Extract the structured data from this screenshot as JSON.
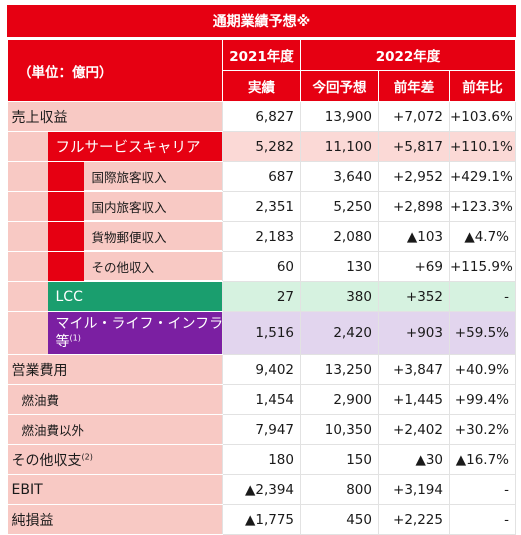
{
  "title": "通期業績予想※",
  "header": {
    "unit": "（単位：億円）",
    "fy2021": "2021年度",
    "fy2022": "2022年度",
    "actual": "実績",
    "forecast": "今回予想",
    "yoy_diff": "前年差",
    "yoy_ratio": "前年比"
  },
  "rows": [
    {
      "label": "売上収益",
      "v2021": "6,827",
      "v2022": "13,900",
      "diff": "+7,072",
      "ratio": "+103.6%"
    },
    {
      "label": "フルサービスキャリア",
      "v2021": "5,282",
      "v2022": "11,100",
      "diff": "+5,817",
      "ratio": "+110.1%"
    },
    {
      "label": "国際旅客収入",
      "v2021": "687",
      "v2022": "3,640",
      "diff": "+2,952",
      "ratio": "+429.1%"
    },
    {
      "label": "国内旅客収入",
      "v2021": "2,351",
      "v2022": "5,250",
      "diff": "+2,898",
      "ratio": "+123.3%"
    },
    {
      "label": "貨物郵便収入",
      "v2021": "2,183",
      "v2022": "2,080",
      "diff": "▲103",
      "ratio": "▲4.7%"
    },
    {
      "label": "その他収入",
      "v2021": "60",
      "v2022": "130",
      "diff": "+69",
      "ratio": "+115.9%"
    },
    {
      "label": "LCC",
      "v2021": "27",
      "v2022": "380",
      "diff": "+352",
      "ratio": "-"
    },
    {
      "label": "マイル・ライフ・インフラ等",
      "note": "(1)",
      "v2021": "1,516",
      "v2022": "2,420",
      "diff": "+903",
      "ratio": "+59.5%"
    },
    {
      "label": "営業費用",
      "v2021": "9,402",
      "v2022": "13,250",
      "diff": "+3,847",
      "ratio": "+40.9%"
    },
    {
      "label": "燃油費",
      "v2021": "1,454",
      "v2022": "2,900",
      "diff": "+1,445",
      "ratio": "+99.4%"
    },
    {
      "label": "燃油費以外",
      "v2021": "7,947",
      "v2022": "10,350",
      "diff": "+2,402",
      "ratio": "+30.2%"
    },
    {
      "label": "その他収支",
      "note": "(2)",
      "v2021": "180",
      "v2022": "150",
      "diff": "▲30",
      "ratio": "▲16.7%"
    },
    {
      "label": "EBIT",
      "v2021": "▲2,394",
      "v2022": "800",
      "diff": "+3,194",
      "ratio": "-"
    },
    {
      "label": "純損益",
      "v2021": "▲1,775",
      "v2022": "450",
      "diff": "+2,225",
      "ratio": "-"
    }
  ],
  "colors": {
    "accent": "#e60012",
    "label_bg": "#f8c9c4",
    "lcc": "#1a9e6e",
    "mileage": "#7b1fa2"
  }
}
